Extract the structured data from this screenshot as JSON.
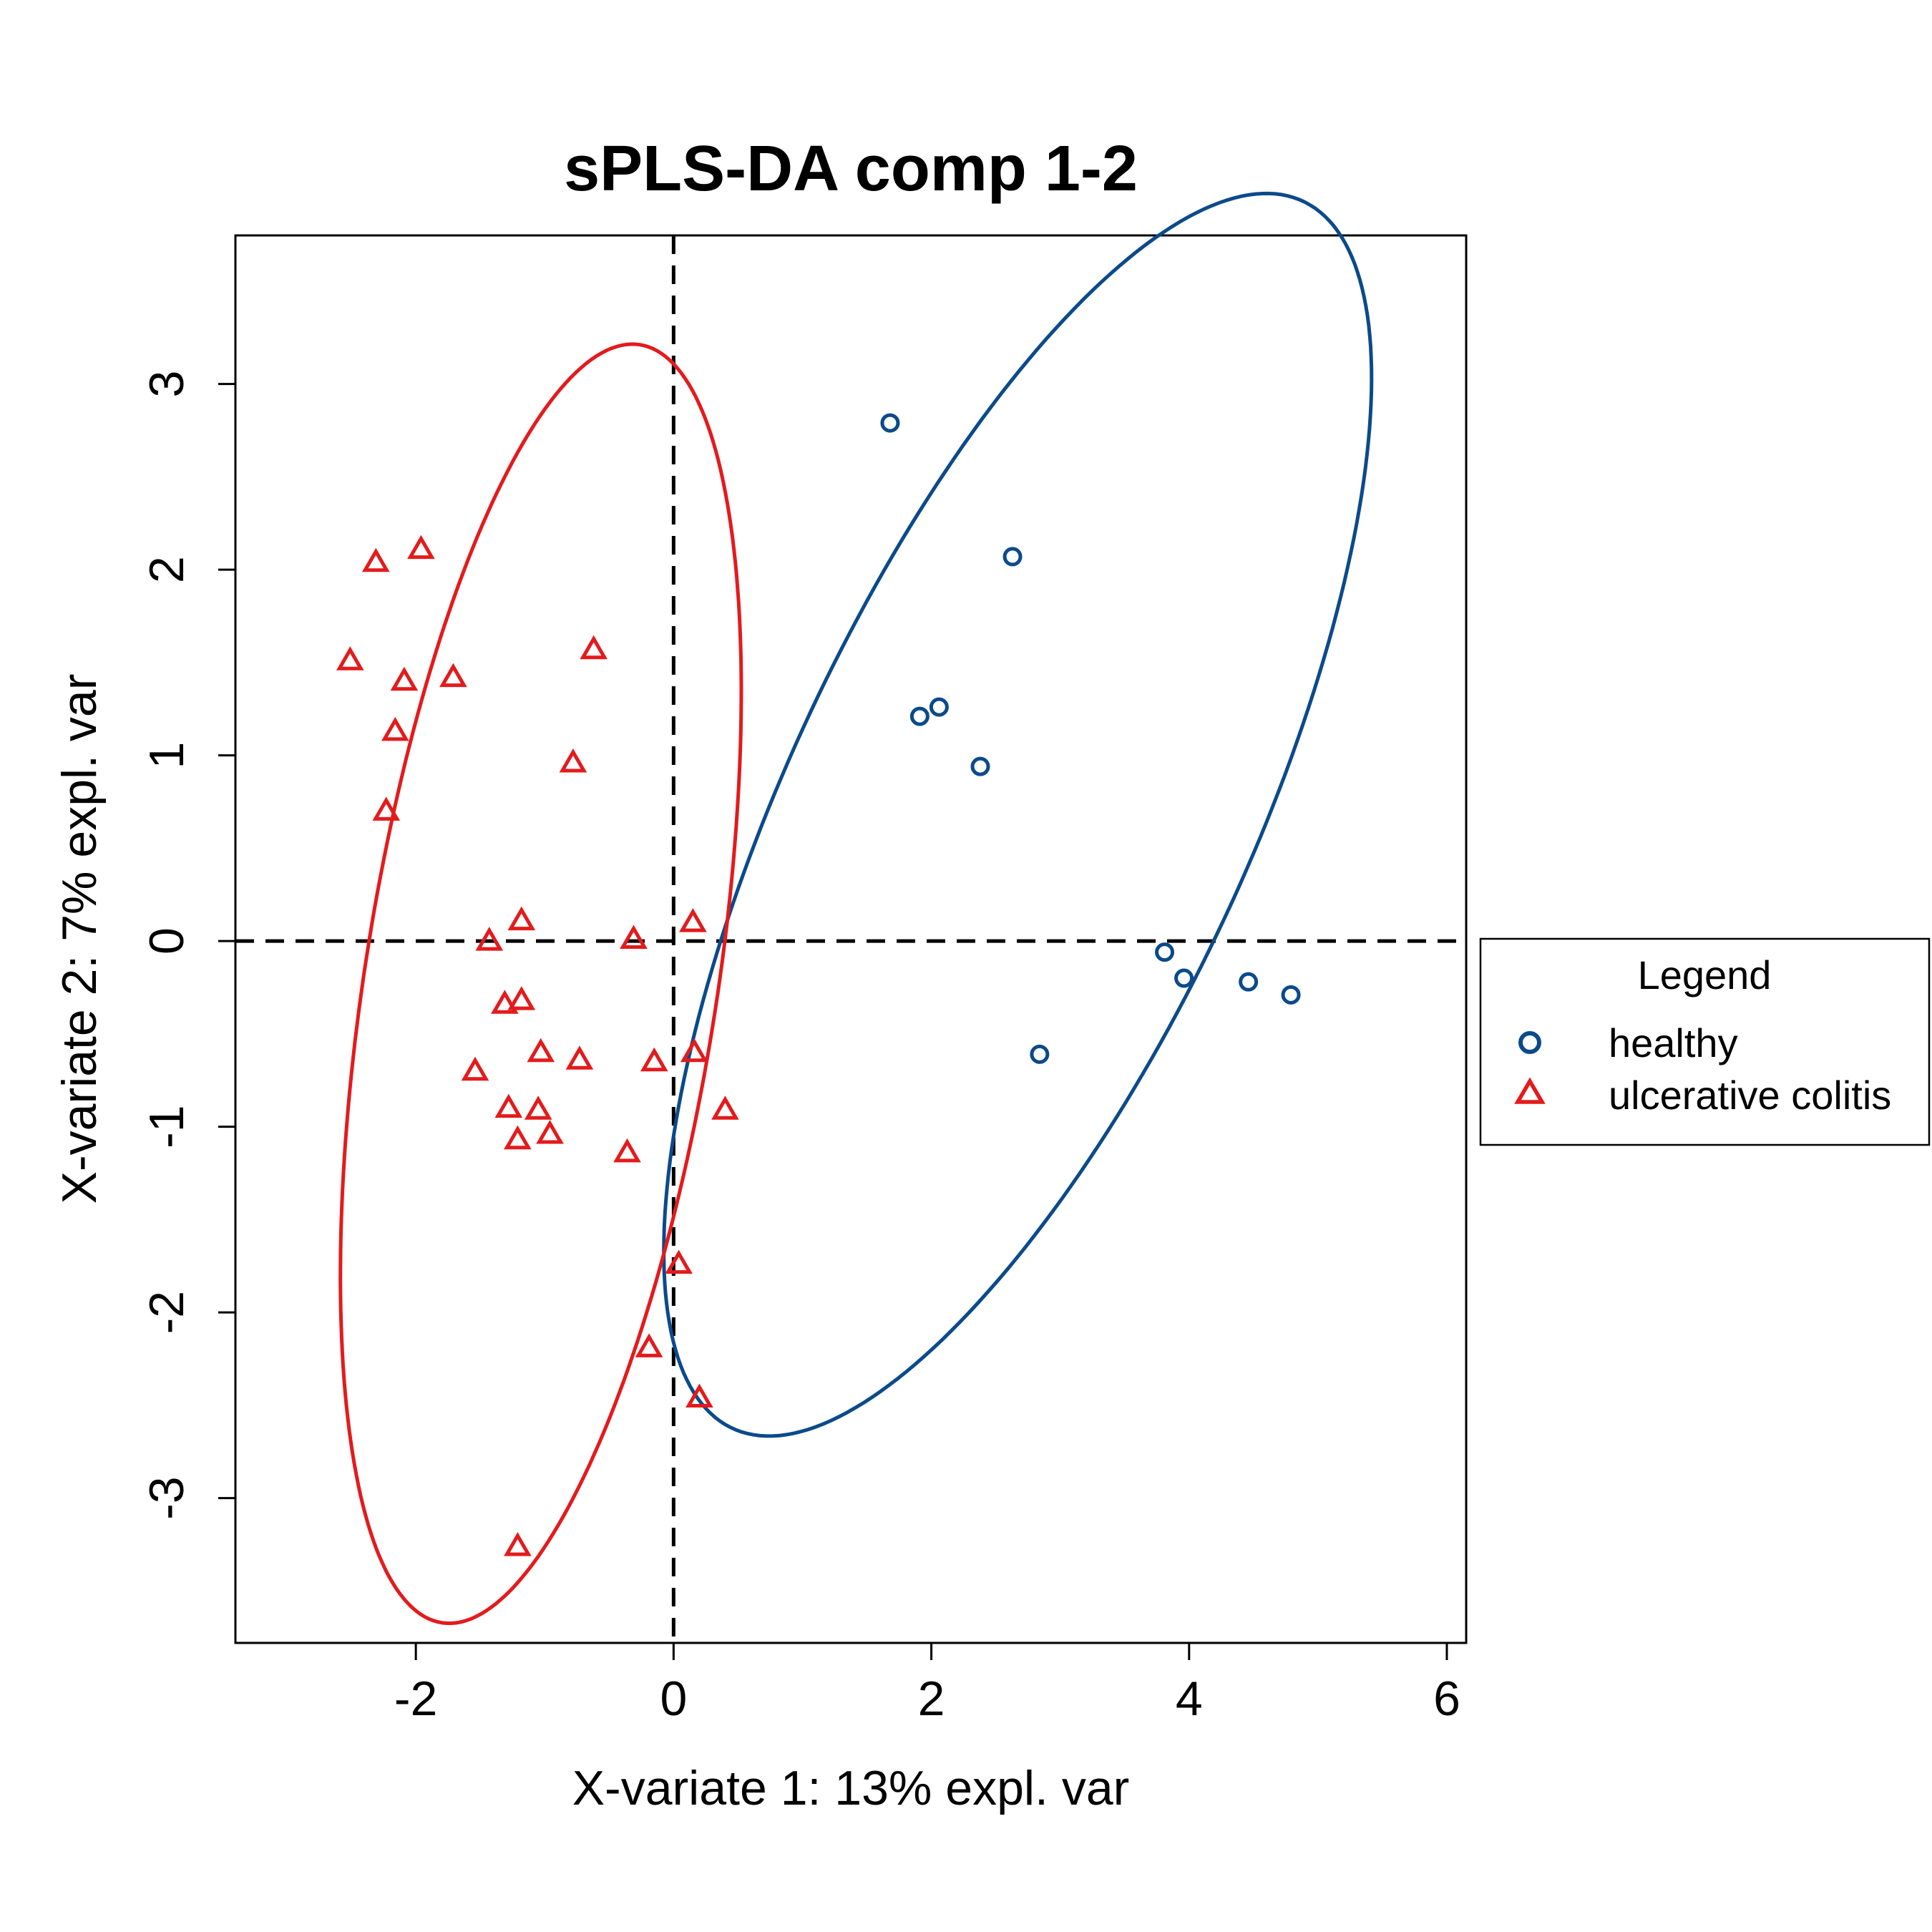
{
  "chart_data": {
    "type": "scatter",
    "title": "sPLS-DA comp 1-2",
    "xlabel": "X-variate 1: 13% expl. var",
    "ylabel": "X-variate 2: 7% expl. var",
    "xlim": [
      -3.4,
      6.15
    ],
    "ylim": [
      -3.78,
      3.8
    ],
    "xticks": [
      -2,
      0,
      2,
      4,
      6
    ],
    "yticks": [
      -3,
      -2,
      -1,
      0,
      1,
      2,
      3
    ],
    "grid": false,
    "reference_lines": {
      "x": 0,
      "y": 0,
      "style": "dashed"
    },
    "legend": {
      "title": "Legend",
      "placement": "right",
      "entries": [
        {
          "label": "healthy",
          "marker": "circle",
          "color": "#0b4a8b"
        },
        {
          "label": "ulcerative colitis",
          "marker": "triangle",
          "color": "#e41a1c"
        }
      ]
    },
    "series": [
      {
        "name": "healthy",
        "marker": "circle",
        "color": "#0b4a8b",
        "points": [
          [
            1.68,
            2.79
          ],
          [
            2.63,
            2.07
          ],
          [
            1.91,
            1.21
          ],
          [
            2.06,
            1.26
          ],
          [
            2.38,
            0.94
          ],
          [
            3.81,
            -0.06
          ],
          [
            3.96,
            -0.2
          ],
          [
            4.46,
            -0.22
          ],
          [
            4.79,
            -0.29
          ],
          [
            2.84,
            -0.61
          ]
        ],
        "ellipse": {
          "cx": 2.67,
          "cy": 0.68,
          "rx": 4.01,
          "ry": 1.63,
          "angle_deg": 52.9
        }
      },
      {
        "name": "ulcerative colitis",
        "marker": "triangle",
        "color": "#e41a1c",
        "points": [
          [
            -2.31,
            2.04
          ],
          [
            -1.96,
            2.11
          ],
          [
            -2.51,
            1.51
          ],
          [
            -2.09,
            1.4
          ],
          [
            -1.71,
            1.42
          ],
          [
            -2.16,
            1.13
          ],
          [
            -0.62,
            1.57
          ],
          [
            -0.78,
            0.96
          ],
          [
            -2.23,
            0.7
          ],
          [
            -1.18,
            0.11
          ],
          [
            0.15,
            0.1
          ],
          [
            -1.43,
            0.0
          ],
          [
            -0.31,
            0.01
          ],
          [
            -1.31,
            -0.34
          ],
          [
            -1.18,
            -0.32
          ],
          [
            -1.03,
            -0.6
          ],
          [
            -0.73,
            -0.64
          ],
          [
            -1.54,
            -0.7
          ],
          [
            -0.15,
            -0.65
          ],
          [
            0.16,
            -0.6
          ],
          [
            -1.28,
            -0.9
          ],
          [
            -1.05,
            -0.91
          ],
          [
            -0.96,
            -1.04
          ],
          [
            -1.21,
            -1.07
          ],
          [
            0.4,
            -0.91
          ],
          [
            -0.36,
            -1.14
          ],
          [
            0.04,
            -1.74
          ],
          [
            -0.19,
            -2.19
          ],
          [
            0.2,
            -2.46
          ],
          [
            -1.21,
            -3.26
          ]
        ],
        "ellipse": {
          "cx": -1.03,
          "cy": -0.23,
          "rx": 3.53,
          "ry": 1.35,
          "angle_deg": 76.3
        }
      }
    ]
  }
}
